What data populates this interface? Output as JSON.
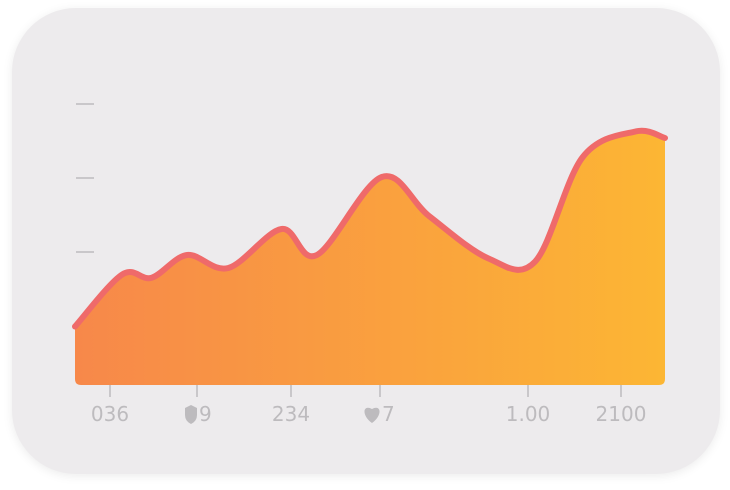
{
  "chart_data": {
    "type": "area",
    "title": "",
    "xlabel": "",
    "ylabel": "",
    "x_tick_labels": [
      {
        "text": "036",
        "icon": ""
      },
      {
        "text": "9",
        "icon": "shield-icon"
      },
      {
        "text": "234",
        "icon": ""
      },
      {
        "text": "7",
        "icon": "heart-icon"
      },
      {
        "text": "1.00",
        "icon": ""
      },
      {
        "text": "2100",
        "icon": ""
      }
    ],
    "y_tick_count": 4,
    "grid": false,
    "legend": "none",
    "ylim": [
      0,
      100
    ],
    "xlim": [
      0,
      100
    ],
    "series": [
      {
        "x": [
          0,
          8,
          13,
          19,
          26,
          35,
          41,
          52,
          60,
          70,
          78,
          86,
          95,
          100
        ],
        "values": [
          18,
          34,
          33,
          40,
          36,
          48,
          40,
          64,
          52,
          39,
          38,
          70,
          78,
          76
        ],
        "fill_start": "#f7884a",
        "fill_end": "#fcb634",
        "line_color": "#ef6a6a"
      }
    ]
  }
}
